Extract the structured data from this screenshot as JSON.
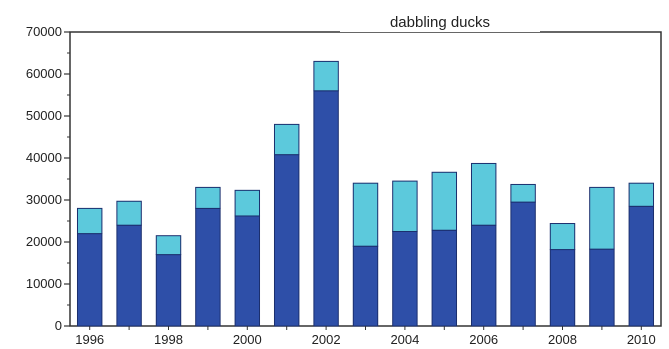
{
  "chart_data": {
    "type": "bar",
    "stacked": true,
    "title": "dabbling ducks",
    "xlabel": "",
    "ylabel": "",
    "categories": [
      "1996",
      "1997",
      "1998",
      "1999",
      "2000",
      "2001",
      "2002",
      "2003",
      "2004",
      "2005",
      "2006",
      "2007",
      "2008",
      "2009",
      "2010"
    ],
    "x_tick_labels": [
      "1996",
      "1998",
      "2000",
      "2002",
      "2004",
      "2006",
      "2008",
      "2010"
    ],
    "ylim": [
      0,
      70000
    ],
    "y_ticks": [
      0,
      10000,
      20000,
      30000,
      40000,
      50000,
      60000,
      70000
    ],
    "y_tick_labels": [
      "0",
      "10000",
      "20000",
      "30000",
      "40000",
      "50000",
      "60000",
      "70000"
    ],
    "series": [
      {
        "values": [
          22000,
          24000,
          17000,
          28000,
          26200,
          40800,
          56000,
          19000,
          22500,
          22800,
          24000,
          29500,
          18200,
          18300,
          28500
        ],
        "color": "#2e4fa8"
      },
      {
        "values": [
          6000,
          5700,
          4500,
          5000,
          6100,
          7200,
          7000,
          15000,
          12000,
          13800,
          14700,
          4200,
          6200,
          14700,
          5500
        ],
        "color": "#5cc9dc"
      }
    ],
    "grid": false,
    "legend": "none"
  }
}
